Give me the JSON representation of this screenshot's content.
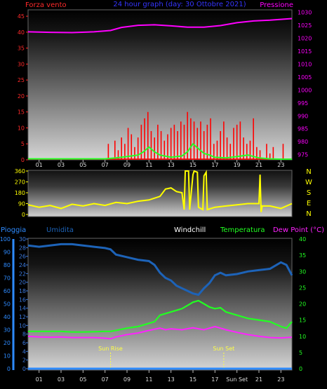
{
  "chart_data": [
    {
      "type": "line",
      "panel": "wind-pressure",
      "title": "24 hour graph (day: 30 Ottobre 2021)",
      "left_label": "Forza vento",
      "right_label": "Pressione",
      "y_left": {
        "ticks": [
          0,
          5,
          10,
          15,
          20,
          25,
          30,
          35,
          40,
          45
        ],
        "range": [
          0,
          47
        ]
      },
      "y_right": {
        "ticks": [
          975,
          980,
          985,
          990,
          995,
          1000,
          1005,
          1010,
          1015,
          1020,
          1025,
          1030
        ],
        "range": [
          973,
          1031
        ]
      },
      "x_ticks": [
        "01",
        "03",
        "05",
        "07",
        "09",
        "11",
        "13",
        "15",
        "17",
        "19",
        "21",
        "23"
      ],
      "x_range": [
        0,
        24
      ],
      "pressure": {
        "x": [
          0,
          2,
          4,
          6,
          7.5,
          8.5,
          10,
          11.5,
          13,
          14.5,
          16,
          17.5,
          19,
          20.5,
          22,
          24
        ],
        "y": [
          1022.5,
          1022.3,
          1022.2,
          1022.5,
          1023,
          1024.2,
          1025,
          1025.2,
          1024.8,
          1024.3,
          1024.3,
          1024.9,
          1026,
          1026.7,
          1027,
          1027.6
        ]
      },
      "wind_gust": {
        "x": [
          7.3,
          7.6,
          7.9,
          8.2,
          8.5,
          8.8,
          9.1,
          9.4,
          9.7,
          10,
          10.3,
          10.6,
          10.9,
          11.2,
          11.5,
          11.8,
          12.1,
          12.4,
          12.7,
          13,
          13.3,
          13.6,
          13.9,
          14.2,
          14.5,
          14.8,
          15.1,
          15.4,
          15.7,
          16,
          16.3,
          16.6,
          16.9,
          17.2,
          17.5,
          17.8,
          18.1,
          18.4,
          18.7,
          19,
          19.3,
          19.6,
          19.9,
          20.2,
          20.5,
          20.8,
          21.1,
          21.4,
          21.7,
          22,
          22.3,
          22.6,
          22.9,
          23.2,
          23.5
        ],
        "y": [
          5,
          0,
          6,
          3,
          7,
          5,
          10,
          8,
          4,
          7,
          11,
          13,
          15,
          9,
          7,
          11,
          9,
          6,
          8,
          10,
          11,
          9,
          12,
          11,
          15,
          13,
          12,
          10,
          12,
          9,
          11,
          13,
          5,
          6,
          9,
          12,
          7,
          5,
          10,
          11,
          12,
          7,
          5,
          6,
          13,
          4,
          3,
          0,
          5,
          2,
          4,
          0,
          0,
          5,
          0
        ]
      },
      "wind_speed": {
        "x": [
          0,
          7,
          8,
          9,
          10,
          10.5,
          11,
          11.5,
          12,
          13,
          14,
          14.5,
          15,
          15.5,
          16,
          16.5,
          17,
          18,
          19,
          20,
          21,
          22,
          23,
          24
        ],
        "y": [
          0.3,
          0.3,
          0.6,
          1,
          1.5,
          2.5,
          4,
          2.5,
          1.5,
          0.8,
          1.2,
          2.5,
          5,
          3.5,
          2,
          1.5,
          0.8,
          0.6,
          1,
          1.5,
          0.6,
          0.3,
          0.2,
          0.2
        ]
      }
    },
    {
      "type": "line",
      "panel": "wind-direction",
      "y_left": {
        "ticks": [
          0,
          90,
          180,
          270,
          360
        ],
        "range": [
          0,
          360
        ]
      },
      "compass": [
        "N",
        "W",
        "S",
        "E",
        "N"
      ],
      "x_range": [
        0,
        24
      ],
      "direction": {
        "x": [
          0,
          1,
          2,
          3,
          4,
          5,
          6,
          7,
          8,
          9,
          10,
          11,
          12,
          12.5,
          13,
          13.5,
          14,
          14.2,
          14.3,
          14.6,
          14.7,
          15,
          15.1,
          15.4,
          15.5,
          15.9,
          16,
          16.2,
          16.3,
          17,
          18,
          19,
          20,
          21,
          21.1,
          21.2,
          21.3,
          22,
          23,
          24
        ],
        "y": [
          80,
          60,
          75,
          50,
          85,
          70,
          90,
          75,
          100,
          90,
          110,
          120,
          150,
          210,
          220,
          190,
          180,
          40,
          360,
          360,
          40,
          330,
          360,
          350,
          60,
          40,
          320,
          350,
          40,
          60,
          70,
          80,
          90,
          90,
          330,
          20,
          70,
          70,
          50,
          90
        ]
      }
    },
    {
      "type": "line",
      "panel": "rain-humidity-temperature",
      "labels": [
        "Pioggia",
        "Umidita",
        "Windchill",
        "Temperatura",
        "Dew Point (°C)"
      ],
      "y_rain": {
        "ticks": [
          0,
          10,
          20,
          30,
          40,
          50,
          60,
          70,
          80,
          90,
          100
        ],
        "range": [
          0,
          100
        ]
      },
      "y_humidity": {
        "ticks": [
          0,
          2,
          4,
          6,
          8,
          10,
          12,
          14,
          16,
          18,
          20,
          22,
          24,
          26,
          28,
          30
        ],
        "range": [
          0,
          30
        ]
      },
      "y_temp": {
        "ticks": [
          0,
          5,
          10,
          15,
          20,
          25,
          30,
          35,
          40
        ],
        "range": [
          0,
          40
        ]
      },
      "x_ticks": [
        "01",
        "03",
        "05",
        "07",
        "09",
        "11",
        "13",
        "15",
        "17",
        "Sun Set",
        "21",
        "23"
      ],
      "x_range": [
        0,
        24
      ],
      "sun_rise": {
        "label": "Sun Rise",
        "x": 7.5
      },
      "sun_set": {
        "label": "Sun Set",
        "x": 17.8
      },
      "humidity": {
        "x": [
          0,
          1,
          2,
          3,
          4,
          5,
          6,
          7,
          7.5,
          8,
          9,
          10,
          11,
          11.5,
          12,
          12.5,
          13,
          13.5,
          14,
          14.5,
          15,
          15.5,
          16,
          16.5,
          17,
          17.5,
          18,
          19,
          20,
          21,
          22,
          23,
          23.5,
          24
        ],
        "y": [
          95,
          94,
          95,
          96,
          96,
          95,
          94,
          93,
          92,
          88,
          86,
          84,
          83,
          80,
          74,
          70,
          68,
          64,
          62,
          60,
          58,
          57,
          62,
          66,
          72,
          74,
          72,
          73,
          75,
          76,
          77,
          82,
          80,
          72
        ]
      },
      "temperature": {
        "x": [
          0,
          1,
          2,
          3,
          4,
          5,
          6,
          7,
          7.5,
          8,
          9,
          10,
          11,
          11.5,
          12,
          13,
          14,
          14.5,
          15,
          15.5,
          16,
          16.5,
          17,
          17.5,
          18,
          19,
          20,
          21,
          22,
          23,
          23.5,
          24
        ],
        "y": [
          11.5,
          11.5,
          11.5,
          11.5,
          11.3,
          11.3,
          11.4,
          11.5,
          11.5,
          11.8,
          12.5,
          13,
          14,
          14.5,
          16.5,
          17.5,
          18.5,
          19.5,
          20.5,
          21,
          20,
          19,
          18.5,
          18.8,
          17.5,
          16.5,
          15.5,
          15,
          14.5,
          13,
          12.5,
          14.5
        ]
      },
      "dew_point": {
        "x": [
          0,
          1,
          2,
          3,
          4,
          5,
          6,
          7,
          7.5,
          8,
          9,
          10,
          11,
          12,
          12.5,
          13,
          14,
          15,
          15.5,
          16,
          17,
          18,
          19,
          20,
          21,
          22,
          23,
          24
        ],
        "y": [
          10,
          9.8,
          9.7,
          9.8,
          9.6,
          9.6,
          9.6,
          9.4,
          9.2,
          9.8,
          10.5,
          11,
          11.8,
          12.5,
          12,
          12.3,
          12,
          12.6,
          12.3,
          12,
          13,
          12,
          11.2,
          10.5,
          10,
          9.6,
          9.5,
          9.7
        ]
      },
      "rain": {
        "x": [
          0,
          24
        ],
        "y": [
          0,
          0
        ]
      }
    }
  ],
  "colors": {
    "wind_label": "#ff2a2a",
    "title": "#3535ff",
    "pressure": "#ff00ff",
    "gust": "#ff0000",
    "speed": "#22ff22",
    "direction": "#ffff00",
    "compass": "#ffff00",
    "rain": "#2e8bff",
    "humidity": "#1d63b8",
    "humidity_axis": "#3d7be0",
    "windchill": "#ffffff",
    "temperature": "#22ff22",
    "dew_point": "#ff22ff",
    "sun": "#ffff44"
  }
}
